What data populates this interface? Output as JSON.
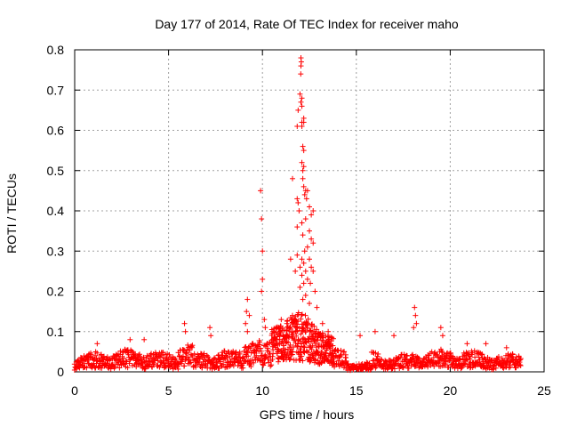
{
  "chart_data": {
    "type": "scatter",
    "title": "Day 177 of 2014, Rate Of TEC Index for receiver maho",
    "xlabel": "GPS time / hours",
    "ylabel": "ROTI / TECUs",
    "xlim": [
      0,
      25
    ],
    "ylim": [
      0,
      0.8
    ],
    "xticks": [
      0,
      5,
      10,
      15,
      20,
      25
    ],
    "yticks": [
      0,
      0.1,
      0.2,
      0.3,
      0.4,
      0.5,
      0.6,
      0.7,
      0.8
    ],
    "grid": true,
    "marker": "+",
    "color": "#ff0000",
    "series": [
      {
        "name": "ROTI",
        "points": [
          [
            12.05,
            0.78
          ],
          [
            12.07,
            0.77
          ],
          [
            12.05,
            0.76
          ],
          [
            12.04,
            0.74
          ],
          [
            12.0,
            0.69
          ],
          [
            12.1,
            0.68
          ],
          [
            12.05,
            0.67
          ],
          [
            12.1,
            0.66
          ],
          [
            11.9,
            0.65
          ],
          [
            12.2,
            0.63
          ],
          [
            12.1,
            0.62
          ],
          [
            12.1,
            0.61
          ],
          [
            11.85,
            0.61
          ],
          [
            12.2,
            0.62
          ],
          [
            12.15,
            0.56
          ],
          [
            12.2,
            0.55
          ],
          [
            12.1,
            0.52
          ],
          [
            12.2,
            0.51
          ],
          [
            12.15,
            0.5
          ],
          [
            12.15,
            0.48
          ],
          [
            11.6,
            0.48
          ],
          [
            12.2,
            0.46
          ],
          [
            12.3,
            0.45
          ],
          [
            12.4,
            0.45
          ],
          [
            12.25,
            0.44
          ],
          [
            11.85,
            0.43
          ],
          [
            12.35,
            0.43
          ],
          [
            11.9,
            0.42
          ],
          [
            11.95,
            0.4
          ],
          [
            12.7,
            0.4
          ],
          [
            12.5,
            0.41
          ],
          [
            12.6,
            0.39
          ],
          [
            12.3,
            0.38
          ],
          [
            12.1,
            0.37
          ],
          [
            12.5,
            0.35
          ],
          [
            11.85,
            0.36
          ],
          [
            12.15,
            0.34
          ],
          [
            12.6,
            0.33
          ],
          [
            12.7,
            0.32
          ],
          [
            12.4,
            0.31
          ],
          [
            12.25,
            0.3
          ],
          [
            11.85,
            0.29
          ],
          [
            12.1,
            0.28
          ],
          [
            12.2,
            0.27
          ],
          [
            12.5,
            0.28
          ],
          [
            12.6,
            0.26
          ],
          [
            11.5,
            0.28
          ],
          [
            12.0,
            0.26
          ],
          [
            12.3,
            0.25
          ],
          [
            12.1,
            0.24
          ],
          [
            12.7,
            0.25
          ],
          [
            11.75,
            0.25
          ],
          [
            12.4,
            0.23
          ],
          [
            12.2,
            0.22
          ],
          [
            12.55,
            0.22
          ],
          [
            12.0,
            0.21
          ],
          [
            12.8,
            0.2
          ],
          [
            12.3,
            0.19
          ],
          [
            12.15,
            0.18
          ],
          [
            12.5,
            0.17
          ],
          [
            9.9,
            0.45
          ],
          [
            9.95,
            0.38
          ],
          [
            10.0,
            0.3
          ],
          [
            10.0,
            0.23
          ],
          [
            9.95,
            0.2
          ],
          [
            9.2,
            0.18
          ],
          [
            9.15,
            0.15
          ],
          [
            9.3,
            0.14
          ],
          [
            9.1,
            0.12
          ],
          [
            9.2,
            0.1
          ],
          [
            10.1,
            0.13
          ],
          [
            10.15,
            0.11
          ],
          [
            11.0,
            0.13
          ],
          [
            11.3,
            0.12
          ],
          [
            11.6,
            0.14
          ],
          [
            11.8,
            0.11
          ],
          [
            12.9,
            0.16
          ],
          [
            13.2,
            0.12
          ],
          [
            13.5,
            0.1
          ],
          [
            13.0,
            0.09
          ],
          [
            18.1,
            0.16
          ],
          [
            18.15,
            0.14
          ],
          [
            18.2,
            0.12
          ],
          [
            18.05,
            0.11
          ],
          [
            5.85,
            0.12
          ],
          [
            5.9,
            0.1
          ],
          [
            7.2,
            0.11
          ],
          [
            7.25,
            0.09
          ],
          [
            2.95,
            0.08
          ],
          [
            3.7,
            0.08
          ],
          [
            1.2,
            0.07
          ],
          [
            19.5,
            0.11
          ],
          [
            19.6,
            0.09
          ],
          [
            16.0,
            0.1
          ],
          [
            17.0,
            0.09
          ],
          [
            20.9,
            0.07
          ],
          [
            21.9,
            0.07
          ],
          [
            23.0,
            0.06
          ],
          [
            15.2,
            0.09
          ]
        ]
      }
    ]
  }
}
